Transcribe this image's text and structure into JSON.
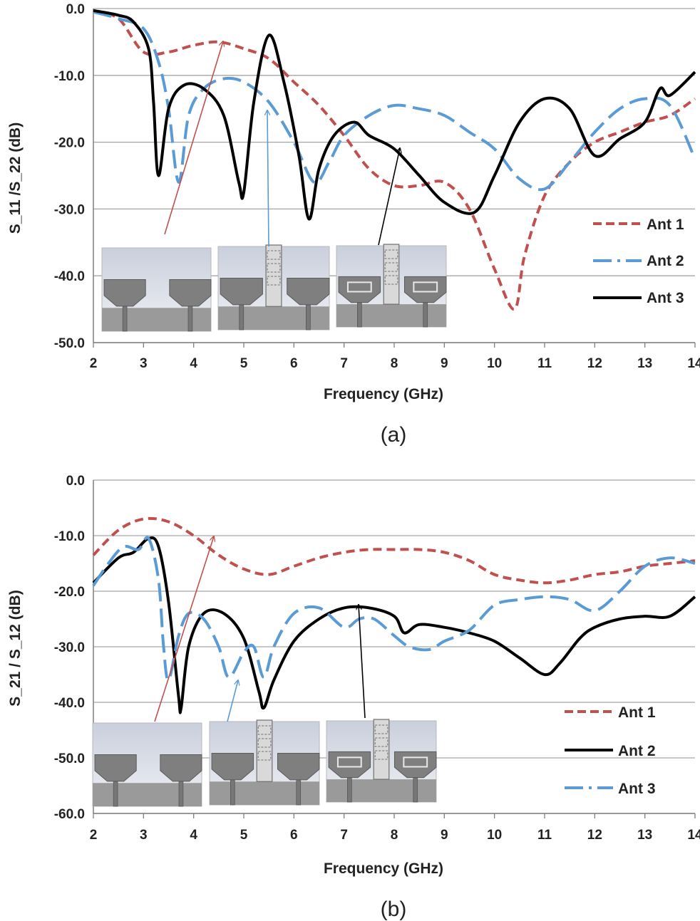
{
  "chart_data": [
    {
      "type": "line",
      "panel_label": "(a)",
      "xlabel": "Frequency (GHz)",
      "ylabel": "S_11 /S_22 (dB)",
      "xlim": [
        2,
        14
      ],
      "ylim": [
        -50,
        0
      ],
      "x_ticks": [
        "2",
        "3",
        "4",
        "5",
        "6",
        "7",
        "8",
        "9",
        "10",
        "11",
        "12",
        "13",
        "14"
      ],
      "y_ticks": [
        "0.0",
        "-10.0",
        "-20.0",
        "-30.0",
        "-40.0",
        "-50.0"
      ],
      "grid": true,
      "legend_position": "right-middle",
      "series": [
        {
          "name": "Ant 1",
          "color": "#c0504d",
          "style": "dashed",
          "points": [
            [
              2,
              -0.5
            ],
            [
              2.5,
              -1.5
            ],
            [
              3,
              -6.5
            ],
            [
              3.5,
              -6.5
            ],
            [
              4,
              -5.5
            ],
            [
              4.5,
              -5
            ],
            [
              5,
              -6
            ],
            [
              5.5,
              -7.5
            ],
            [
              6,
              -11
            ],
            [
              6.5,
              -14.5
            ],
            [
              7,
              -19
            ],
            [
              7.5,
              -24
            ],
            [
              8,
              -26.5
            ],
            [
              8.5,
              -26.5
            ],
            [
              9,
              -26
            ],
            [
              9.5,
              -30
            ],
            [
              10,
              -39
            ],
            [
              10.4,
              -45
            ],
            [
              10.6,
              -37
            ],
            [
              11,
              -28
            ],
            [
              11.5,
              -23
            ],
            [
              12,
              -20
            ],
            [
              12.5,
              -18.5
            ],
            [
              13,
              -17
            ],
            [
              13.5,
              -16
            ],
            [
              14,
              -13.5
            ]
          ]
        },
        {
          "name": "Ant 2",
          "color": "#5b9bd5",
          "style": "long-dash",
          "points": [
            [
              2,
              -0.5
            ],
            [
              2.5,
              -1.5
            ],
            [
              3,
              -3
            ],
            [
              3.3,
              -8
            ],
            [
              3.5,
              -15
            ],
            [
              3.7,
              -26
            ],
            [
              3.9,
              -16
            ],
            [
              4.2,
              -12
            ],
            [
              4.6,
              -10.5
            ],
            [
              5,
              -11
            ],
            [
              5.5,
              -14
            ],
            [
              6,
              -20
            ],
            [
              6.4,
              -26
            ],
            [
              6.7,
              -23
            ],
            [
              7,
              -19
            ],
            [
              7.5,
              -16
            ],
            [
              8,
              -14.5
            ],
            [
              8.5,
              -15
            ],
            [
              9,
              -16
            ],
            [
              9.5,
              -18.5
            ],
            [
              10,
              -21
            ],
            [
              10.5,
              -25.5
            ],
            [
              11,
              -27
            ],
            [
              11.5,
              -23
            ],
            [
              12,
              -18.5
            ],
            [
              12.5,
              -15
            ],
            [
              13,
              -13.5
            ],
            [
              13.5,
              -14.5
            ],
            [
              14,
              -22.5
            ]
          ]
        },
        {
          "name": "Ant 3",
          "color": "#000000",
          "style": "solid",
          "points": [
            [
              2,
              -0.3
            ],
            [
              2.5,
              -1
            ],
            [
              2.8,
              -2
            ],
            [
              3.1,
              -6
            ],
            [
              3.2,
              -14
            ],
            [
              3.3,
              -25
            ],
            [
              3.5,
              -15
            ],
            [
              3.8,
              -11.5
            ],
            [
              4.2,
              -12
            ],
            [
              4.6,
              -16
            ],
            [
              4.9,
              -26
            ],
            [
              5,
              -27.5
            ],
            [
              5.2,
              -14
            ],
            [
              5.5,
              -4
            ],
            [
              5.8,
              -11
            ],
            [
              6.1,
              -22
            ],
            [
              6.3,
              -31.5
            ],
            [
              6.5,
              -24
            ],
            [
              6.8,
              -19
            ],
            [
              7.2,
              -17
            ],
            [
              7.5,
              -19
            ],
            [
              8,
              -21
            ],
            [
              8.5,
              -25
            ],
            [
              9,
              -29
            ],
            [
              9.6,
              -30.5
            ],
            [
              10,
              -25
            ],
            [
              10.5,
              -17
            ],
            [
              11,
              -13.5
            ],
            [
              11.5,
              -15
            ],
            [
              12,
              -22
            ],
            [
              12.5,
              -19.5
            ],
            [
              13,
              -17
            ],
            [
              13.3,
              -12
            ],
            [
              13.5,
              -13
            ],
            [
              14,
              -9.5
            ]
          ]
        }
      ]
    },
    {
      "type": "line",
      "panel_label": "(b)",
      "xlabel": "Frequency (GHz)",
      "ylabel": "S_21 / S_12 (dB)",
      "xlim": [
        2,
        14
      ],
      "ylim": [
        -60,
        0
      ],
      "x_ticks": [
        "2",
        "3",
        "4",
        "5",
        "6",
        "7",
        "8",
        "9",
        "10",
        "11",
        "12",
        "13",
        "14"
      ],
      "y_ticks": [
        "0.0",
        "-10.0",
        "-20.0",
        "-30.0",
        "-40.0",
        "-50.0",
        "-60.0"
      ],
      "grid": true,
      "legend_position": "bottom-right",
      "series": [
        {
          "name": "Ant 1",
          "color": "#c0504d",
          "style": "dashed",
          "points": [
            [
              2,
              -13.5
            ],
            [
              2.5,
              -9
            ],
            [
              3,
              -7
            ],
            [
              3.5,
              -7.5
            ],
            [
              4,
              -10
            ],
            [
              4.5,
              -13.5
            ],
            [
              5,
              -16
            ],
            [
              5.5,
              -17
            ],
            [
              6,
              -15.5
            ],
            [
              6.5,
              -14
            ],
            [
              7,
              -13
            ],
            [
              7.5,
              -12.5
            ],
            [
              8,
              -12.5
            ],
            [
              8.5,
              -12.5
            ],
            [
              9,
              -13
            ],
            [
              9.5,
              -14.5
            ],
            [
              10,
              -17
            ],
            [
              10.5,
              -18
            ],
            [
              11,
              -18.5
            ],
            [
              11.5,
              -18
            ],
            [
              12,
              -17
            ],
            [
              12.5,
              -16.5
            ],
            [
              13,
              -15.5
            ],
            [
              13.5,
              -15
            ],
            [
              14,
              -14.5
            ]
          ]
        },
        {
          "name": "Ant 2",
          "color": "#000000",
          "style": "solid",
          "points": [
            [
              2,
              -18.5
            ],
            [
              2.5,
              -14
            ],
            [
              2.8,
              -13
            ],
            [
              3.1,
              -10.5
            ],
            [
              3.3,
              -12
            ],
            [
              3.5,
              -22
            ],
            [
              3.7,
              -39
            ],
            [
              3.75,
              -41
            ],
            [
              3.9,
              -30
            ],
            [
              4.2,
              -24
            ],
            [
              4.6,
              -24
            ],
            [
              5,
              -28.5
            ],
            [
              5.3,
              -38
            ],
            [
              5.4,
              -41
            ],
            [
              5.6,
              -36
            ],
            [
              6,
              -29
            ],
            [
              6.5,
              -25
            ],
            [
              7,
              -23
            ],
            [
              7.5,
              -23
            ],
            [
              8,
              -24.5
            ],
            [
              8.2,
              -27.5
            ],
            [
              8.5,
              -26
            ],
            [
              9,
              -26.5
            ],
            [
              9.5,
              -27.5
            ],
            [
              10,
              -29
            ],
            [
              10.5,
              -32
            ],
            [
              11,
              -35
            ],
            [
              11.3,
              -33
            ],
            [
              11.7,
              -28.5
            ],
            [
              12,
              -26.5
            ],
            [
              12.5,
              -25
            ],
            [
              13,
              -24.5
            ],
            [
              13.5,
              -24.5
            ],
            [
              14,
              -21
            ]
          ]
        },
        {
          "name": "Ant 3",
          "color": "#5b9bd5",
          "style": "long-dash",
          "points": [
            [
              2,
              -19
            ],
            [
              2.3,
              -15
            ],
            [
              2.6,
              -12
            ],
            [
              2.9,
              -12.5
            ],
            [
              3.1,
              -10.5
            ],
            [
              3.3,
              -18
            ],
            [
              3.4,
              -30
            ],
            [
              3.5,
              -36
            ],
            [
              3.7,
              -28
            ],
            [
              3.9,
              -24
            ],
            [
              4.2,
              -25
            ],
            [
              4.5,
              -30
            ],
            [
              4.7,
              -35.5
            ],
            [
              5,
              -31
            ],
            [
              5.2,
              -30
            ],
            [
              5.4,
              -35.5
            ],
            [
              5.6,
              -30
            ],
            [
              6,
              -24
            ],
            [
              6.5,
              -23
            ],
            [
              7,
              -26.5
            ],
            [
              7.3,
              -25
            ],
            [
              7.6,
              -25
            ],
            [
              8,
              -28
            ],
            [
              8.3,
              -30
            ],
            [
              8.7,
              -30.5
            ],
            [
              9,
              -29
            ],
            [
              9.5,
              -27
            ],
            [
              10,
              -22.5
            ],
            [
              10.5,
              -21.5
            ],
            [
              11,
              -21
            ],
            [
              11.5,
              -21.5
            ],
            [
              12,
              -23.5
            ],
            [
              12.5,
              -20
            ],
            [
              13,
              -15.5
            ],
            [
              13.5,
              -14
            ],
            [
              14,
              -15
            ]
          ]
        }
      ]
    }
  ],
  "panels": [
    {
      "xlabel": "Frequency (GHz)",
      "ylabel": "S_11 /S_22 (dB)",
      "caption": "(a)",
      "legend": [
        "Ant 1",
        "Ant 2",
        "Ant 3"
      ]
    },
    {
      "xlabel": "Frequency (GHz)",
      "ylabel": "S_21 / S_12 (dB)",
      "caption": "(b)",
      "legend": [
        "Ant 1",
        "Ant 2",
        "Ant 3"
      ]
    }
  ]
}
